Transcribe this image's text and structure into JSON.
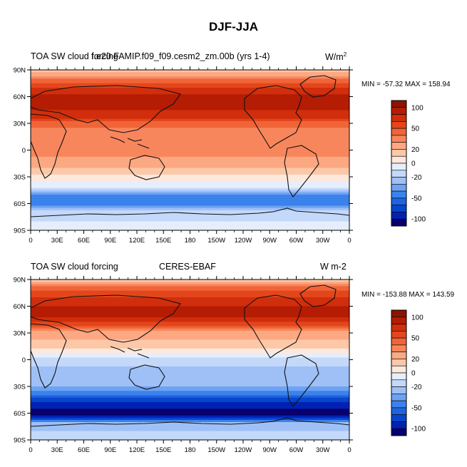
{
  "title": "DJF-JJA",
  "colorbar_levels": [
    -120,
    -100,
    -80,
    -60,
    -50,
    -40,
    -30,
    -20,
    -10,
    0,
    10,
    20,
    30,
    40,
    50,
    60,
    80,
    100,
    120
  ],
  "colorbar_labels": [
    "100",
    "50",
    "20",
    "0",
    "-20",
    "-50",
    "-100"
  ],
  "palette": [
    "#08006e",
    "#0022b4",
    "#0944cc",
    "#1e64e0",
    "#3c82ec",
    "#6ea2f2",
    "#9ec0f6",
    "#c4d8fa",
    "#e6eefc",
    "#fde8dc",
    "#fcc8a8",
    "#fca882",
    "#f8865c",
    "#f06438",
    "#e4461c",
    "#d02e0c",
    "#b41c04",
    "#8c1400"
  ],
  "chart_data": [
    {
      "type": "heatmap",
      "title_left": "TOA SW cloud forcing",
      "title_center": "f.e20.FAMIP.f09_f09.cesm2_zm.00b (yrs 1-4)",
      "units": "W/m",
      "units_sup": "2",
      "min_label": "MIN = -57.32  MAX = 158.94",
      "min": -57.32,
      "max": 158.94,
      "x_ticks": [
        "0",
        "30E",
        "60E",
        "90E",
        "120E",
        "150E",
        "180",
        "150W",
        "120W",
        "90W",
        "60W",
        "30W",
        "0"
      ],
      "y_ticks": [
        "90N",
        "60N",
        "30N",
        "0",
        "30S",
        "60S",
        "90S"
      ],
      "zonal_profile": [
        {
          "lat": 90,
          "v": 10
        },
        {
          "lat": 80,
          "v": 40
        },
        {
          "lat": 70,
          "v": 60
        },
        {
          "lat": 60,
          "v": 90
        },
        {
          "lat": 50,
          "v": 95
        },
        {
          "lat": 40,
          "v": 70
        },
        {
          "lat": 30,
          "v": 45
        },
        {
          "lat": 15,
          "v": 30
        },
        {
          "lat": 0,
          "v": 35
        },
        {
          "lat": -15,
          "v": 25
        },
        {
          "lat": -30,
          "v": 5
        },
        {
          "lat": -40,
          "v": -5
        },
        {
          "lat": -50,
          "v": -40
        },
        {
          "lat": -60,
          "v": -50
        },
        {
          "lat": -70,
          "v": -15
        },
        {
          "lat": -90,
          "v": -5
        }
      ]
    },
    {
      "type": "heatmap",
      "title_left": "TOA SW cloud forcing",
      "title_center": "CERES-EBAF",
      "units": "W m-2",
      "min_label": "MIN = -153.88  MAX = 143.59",
      "min": -153.88,
      "max": 143.59,
      "x_ticks": [
        "0",
        "30E",
        "60E",
        "90E",
        "120E",
        "150E",
        "180",
        "150W",
        "120W",
        "90W",
        "60W",
        "30W",
        "0"
      ],
      "y_ticks": [
        "90N",
        "60N",
        "30N",
        "0",
        "30S",
        "60S",
        "90S"
      ],
      "zonal_profile": [
        {
          "lat": 90,
          "v": 10
        },
        {
          "lat": 80,
          "v": 45
        },
        {
          "lat": 70,
          "v": 60
        },
        {
          "lat": 60,
          "v": 80
        },
        {
          "lat": 50,
          "v": 85
        },
        {
          "lat": 40,
          "v": 55
        },
        {
          "lat": 30,
          "v": 25
        },
        {
          "lat": 15,
          "v": 15
        },
        {
          "lat": 0,
          "v": -15
        },
        {
          "lat": -15,
          "v": -25
        },
        {
          "lat": -30,
          "v": -30
        },
        {
          "lat": -40,
          "v": -50
        },
        {
          "lat": -50,
          "v": -90
        },
        {
          "lat": -60,
          "v": -115
        },
        {
          "lat": -70,
          "v": -30
        },
        {
          "lat": -90,
          "v": -10
        }
      ]
    }
  ]
}
